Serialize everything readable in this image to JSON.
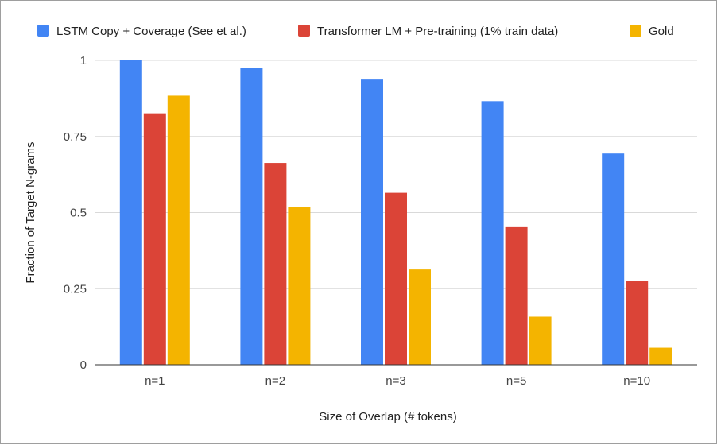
{
  "chart_data": {
    "type": "bar",
    "title": "",
    "xlabel": "Size of Overlap (# tokens)",
    "ylabel": "Fraction of Target N-grams",
    "categories": [
      "n=1",
      "n=2",
      "n=3",
      "n=5",
      "n=10"
    ],
    "ylim": [
      0,
      1
    ],
    "yticks": [
      0,
      0.25,
      0.5,
      0.75,
      1
    ],
    "ytick_labels": [
      "0",
      "0.25",
      "0.5",
      "0.75",
      "1"
    ],
    "grid": true,
    "legend_position": "top",
    "series": [
      {
        "name": "LSTM Copy + Coverage (See et al.)",
        "color": "#4285F4",
        "values": [
          1.0,
          0.975,
          0.937,
          0.866,
          0.694
        ]
      },
      {
        "name": "Transformer LM + Pre-training (1% train data)",
        "color": "#DB4437",
        "values": [
          0.826,
          0.663,
          0.565,
          0.452,
          0.275
        ]
      },
      {
        "name": "Gold",
        "color": "#F4B400",
        "values": [
          0.884,
          0.517,
          0.313,
          0.158,
          0.056
        ]
      }
    ]
  }
}
